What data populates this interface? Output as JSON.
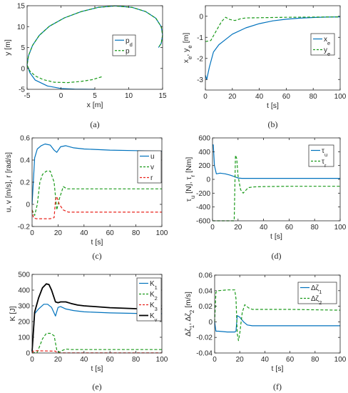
{
  "colors": {
    "blue": "#0072bd",
    "green": "#1a9a1a",
    "red": "#e8231c",
    "black": "#000000"
  },
  "chart_data": [
    {
      "id": "a",
      "type": "line",
      "caption": "(a)",
      "xlabel": "x [m]",
      "ylabel": "y [m]",
      "xlim": [
        -5,
        15
      ],
      "ylim": [
        -5,
        15
      ],
      "xticks": [
        -5,
        0,
        5,
        10,
        15
      ],
      "xticklabels": [
        "-5",
        "0",
        "5",
        "10",
        "15"
      ],
      "yticks": [
        -5,
        0,
        5,
        10,
        15
      ],
      "yticklabels": [
        "-5",
        "0",
        "5",
        "10",
        "15"
      ],
      "legend_position": "right",
      "series": [
        {
          "name": "p_d",
          "color": "#0072bd",
          "dash": false,
          "x": [
            5,
            2,
            0,
            -2,
            -3.8,
            -4.6,
            -5,
            -4.8,
            -4.2,
            -3.2,
            -1.7,
            0.5,
            3,
            5.5,
            8,
            10.5,
            12.5,
            14,
            14.8,
            15,
            14.8,
            14.4
          ],
          "y": [
            -5,
            -4.95,
            -4.8,
            -4.2,
            -2.8,
            -1,
            0.8,
            3,
            5.5,
            7.9,
            10.1,
            12.1,
            13.6,
            14.6,
            14.95,
            14.6,
            13.6,
            12,
            10,
            8,
            6,
            5
          ]
        },
        {
          "name": "p",
          "color": "#1a9a1a",
          "dash": true,
          "x": [
            6,
            4.6,
            3,
            1,
            -1,
            -2.6,
            -3.8,
            -4.6,
            -5,
            -4.8,
            -4.2,
            -3.2,
            -1.7,
            0.5,
            3,
            5.5,
            8,
            10.5,
            12.5,
            14,
            14.8,
            15,
            14.8,
            14.4
          ],
          "y": [
            -2,
            -2.7,
            -3.1,
            -3.4,
            -3.3,
            -2.7,
            -1.8,
            -0.6,
            0.8,
            3,
            5.5,
            7.9,
            10.1,
            12.1,
            13.6,
            14.6,
            14.95,
            14.6,
            13.6,
            12,
            10,
            8,
            6,
            5
          ]
        }
      ]
    },
    {
      "id": "b",
      "type": "line",
      "caption": "(b)",
      "xlabel": "t [s]",
      "ylabel": "x_e, y_e [m]",
      "xlim": [
        0,
        100
      ],
      "ylim": [
        -3.5,
        0.5
      ],
      "xticks": [
        0,
        20,
        40,
        60,
        80,
        100
      ],
      "xticklabels": [
        "0",
        "20",
        "40",
        "60",
        "80",
        "100"
      ],
      "yticks": [
        -3,
        -2,
        -1,
        0
      ],
      "yticklabels": [
        "-3",
        "-2",
        "-1",
        "0"
      ],
      "legend_position": "right",
      "series": [
        {
          "name": "x_e",
          "color": "#0072bd",
          "dash": false,
          "x": [
            0,
            1,
            3,
            6,
            10,
            15,
            20,
            30,
            40,
            50,
            60,
            70,
            80,
            90,
            100
          ],
          "y": [
            -2.8,
            -3.0,
            -2.4,
            -1.7,
            -1.35,
            -1.1,
            -0.85,
            -0.55,
            -0.35,
            -0.22,
            -0.14,
            -0.09,
            -0.06,
            -0.04,
            -0.03
          ]
        },
        {
          "name": "y_e",
          "color": "#1a9a1a",
          "dash": true,
          "x": [
            0,
            4,
            8,
            12,
            15,
            18,
            22,
            26,
            30,
            40,
            60,
            80,
            100
          ],
          "y": [
            -1.2,
            -1.15,
            -0.7,
            -0.25,
            -0.05,
            -0.15,
            -0.2,
            -0.12,
            -0.08,
            -0.07,
            -0.05,
            -0.04,
            -0.03
          ]
        }
      ]
    },
    {
      "id": "c",
      "type": "line",
      "caption": "(c)",
      "xlabel": "t [s]",
      "ylabel": "u, v [m/s], r [rad/s]",
      "xlim": [
        0,
        100
      ],
      "ylim": [
        -0.2,
        0.6
      ],
      "xticks": [
        0,
        20,
        40,
        60,
        80,
        100
      ],
      "xticklabels": [
        "0",
        "20",
        "40",
        "60",
        "80",
        "100"
      ],
      "yticks": [
        -0.2,
        0,
        0.2,
        0.4,
        0.6
      ],
      "yticklabels": [
        "-0.2",
        "0",
        "0.2",
        "0.4",
        "0.6"
      ],
      "legend_position": "right",
      "series": [
        {
          "name": "u",
          "color": "#0072bd",
          "dash": false,
          "x": [
            0,
            2,
            4,
            7,
            10,
            14,
            17,
            19,
            22,
            26,
            32,
            40,
            60,
            80,
            100
          ],
          "y": [
            0,
            0.42,
            0.5,
            0.53,
            0.545,
            0.535,
            0.49,
            0.47,
            0.52,
            0.53,
            0.51,
            0.5,
            0.49,
            0.485,
            0.48
          ]
        },
        {
          "name": "v",
          "color": "#1a9a1a",
          "dash": true,
          "x": [
            0,
            2,
            4,
            6,
            8,
            11,
            14,
            17,
            19,
            21,
            24,
            27,
            30,
            40,
            60,
            100
          ],
          "y": [
            -0.05,
            -0.1,
            0.0,
            0.2,
            0.27,
            0.3,
            0.3,
            0.2,
            -0.05,
            0.05,
            0.16,
            0.14,
            0.14,
            0.14,
            0.14,
            0.14
          ]
        },
        {
          "name": "r",
          "color": "#e8231c",
          "dash": true,
          "x": [
            0,
            1,
            3,
            8,
            14,
            17,
            18,
            19,
            21,
            24,
            28,
            35,
            50,
            100
          ],
          "y": [
            -0.05,
            -0.12,
            -0.13,
            -0.13,
            -0.13,
            -0.12,
            0.04,
            0.07,
            0.0,
            -0.05,
            -0.07,
            -0.07,
            -0.07,
            -0.07
          ]
        }
      ]
    },
    {
      "id": "d",
      "type": "line",
      "caption": "(d)",
      "xlabel": "t [s]",
      "ylabel": "τ_u [N], τ_r [Nm]",
      "xlim": [
        0,
        100
      ],
      "ylim": [
        -600,
        600
      ],
      "xticks": [
        0,
        20,
        40,
        60,
        80,
        100
      ],
      "xticklabels": [
        "0",
        "20",
        "40",
        "60",
        "80",
        "100"
      ],
      "yticks": [
        -600,
        -400,
        -200,
        0,
        200,
        400,
        600
      ],
      "yticklabels": [
        "-600",
        "-400",
        "-200",
        "0",
        "200",
        "400",
        "600"
      ],
      "legend_position": "right",
      "series": [
        {
          "name": "τ_u",
          "color": "#0072bd",
          "dash": false,
          "x": [
            0,
            0.6,
            1.5,
            3,
            6,
            10,
            14,
            17,
            20,
            23,
            30,
            60,
            100
          ],
          "y": [
            500,
            500,
            200,
            80,
            90,
            80,
            60,
            40,
            20,
            15,
            15,
            15,
            15
          ]
        },
        {
          "name": "τ_r",
          "color": "#1a9a1a",
          "dash": true,
          "x": [
            0,
            16,
            17,
            18,
            19,
            20,
            22,
            24,
            26,
            28,
            32,
            40,
            60,
            100
          ],
          "y": [
            -600,
            -600,
            -600,
            350,
            300,
            50,
            -150,
            -200,
            -160,
            -120,
            -110,
            -105,
            -100,
            -100
          ]
        }
      ]
    },
    {
      "id": "e",
      "type": "line",
      "caption": "(e)",
      "xlabel": "t [s]",
      "ylabel": "K [J]",
      "xlim": [
        0,
        100
      ],
      "ylim": [
        0,
        500
      ],
      "xticks": [
        0,
        20,
        40,
        60,
        80,
        100
      ],
      "xticklabels": [
        "0",
        "20",
        "40",
        "60",
        "80",
        "100"
      ],
      "yticks": [
        0,
        100,
        200,
        300,
        400,
        500
      ],
      "yticklabels": [
        "0",
        "100",
        "200",
        "300",
        "400",
        "500"
      ],
      "legend_position": "right",
      "series": [
        {
          "name": "K_1",
          "color": "#0072bd",
          "dash": false,
          "x": [
            0,
            2,
            5,
            9,
            12,
            15,
            18,
            20,
            22,
            26,
            32,
            40,
            60,
            80,
            100
          ],
          "y": [
            10,
            250,
            280,
            310,
            310,
            290,
            235,
            290,
            295,
            280,
            270,
            262,
            255,
            252,
            250
          ]
        },
        {
          "name": "K_2",
          "color": "#1a9a1a",
          "dash": true,
          "x": [
            0,
            4,
            8,
            11,
            14,
            17,
            19,
            21,
            23,
            26,
            30,
            40,
            60,
            100
          ],
          "y": [
            0,
            5,
            90,
            125,
            125,
            110,
            20,
            5,
            15,
            25,
            22,
            22,
            22,
            22
          ]
        },
        {
          "name": "K_3",
          "color": "#e8231c",
          "dash": true,
          "x": [
            0,
            1,
            3,
            10,
            16,
            18,
            19,
            20,
            23,
            30,
            100
          ],
          "y": [
            0,
            12,
            14,
            13,
            12,
            12,
            2,
            1,
            1,
            1,
            1
          ]
        },
        {
          "name": "K_v",
          "color": "#000000",
          "dash": false,
          "x": [
            0,
            2,
            5,
            8,
            11,
            13,
            15,
            18,
            20,
            22,
            26,
            30,
            35,
            40,
            60,
            80,
            100
          ],
          "y": [
            10,
            260,
            350,
            415,
            440,
            435,
            400,
            325,
            320,
            325,
            325,
            315,
            305,
            300,
            288,
            282,
            280
          ]
        }
      ]
    },
    {
      "id": "f",
      "type": "line",
      "caption": "(f)",
      "xlabel": "t [s]",
      "ylabel": "Δζ_1, Δζ_2 [m/s]",
      "xlim": [
        0,
        100
      ],
      "ylim": [
        -0.04,
        0.06
      ],
      "xticks": [
        0,
        20,
        40,
        60,
        80,
        100
      ],
      "xticklabels": [
        "0",
        "20",
        "40",
        "60",
        "80",
        "100"
      ],
      "yticks": [
        -0.04,
        -0.02,
        0,
        0.02,
        0.04,
        0.06
      ],
      "yticklabels": [
        "-0.04",
        "-0.02",
        "0",
        "0.02",
        "0.04",
        "0.06"
      ],
      "legend_position": "right",
      "series": [
        {
          "name": "Δζ_1",
          "color": "#0072bd",
          "dash": false,
          "x": [
            0,
            1,
            3,
            10,
            16,
            17,
            18,
            20,
            23,
            26,
            30,
            40,
            60,
            100
          ],
          "y": [
            0.0,
            -0.012,
            -0.012,
            -0.013,
            -0.013,
            -0.012,
            0.008,
            0.006,
            0.0,
            -0.004,
            -0.005,
            -0.005,
            -0.005,
            -0.005
          ]
        },
        {
          "name": "Δζ_2",
          "color": "#1a9a1a",
          "dash": true,
          "x": [
            0,
            1,
            3,
            10,
            16,
            17,
            18,
            19,
            20,
            22,
            24,
            27,
            30,
            40,
            60,
            100
          ],
          "y": [
            0.0,
            0.038,
            0.04,
            0.041,
            0.041,
            0.03,
            -0.015,
            -0.024,
            -0.015,
            0.012,
            0.022,
            0.018,
            0.016,
            0.016,
            0.016,
            0.015
          ]
        }
      ]
    }
  ]
}
